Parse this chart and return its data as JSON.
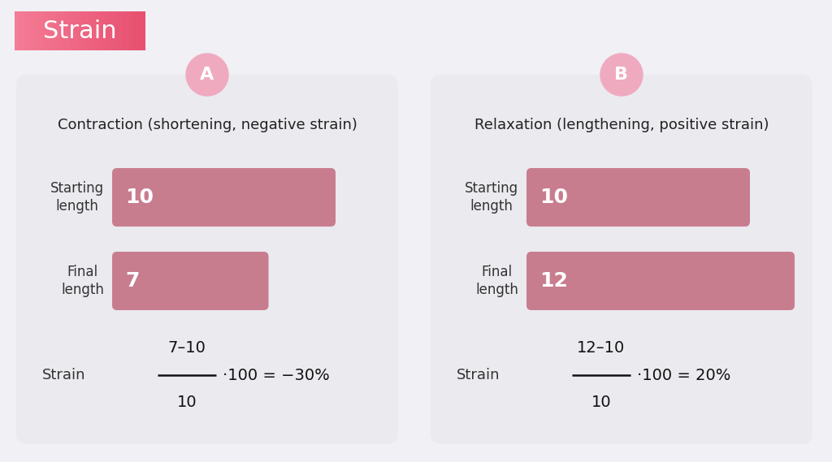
{
  "bg_color": "#f0f0f5",
  "panel_color": "#eaeaef",
  "bar_color": "#c87d8f",
  "title_badge_text": "Strain",
  "badge_circle_color": "#f0aac0",
  "panel_a": {
    "badge": "A",
    "title": "Contraction (shortening, negative strain)",
    "bar1_label": "Starting\nlength",
    "bar1_value": 10,
    "bar1_display": "10",
    "bar2_label": "Final\nlength",
    "bar2_value": 7,
    "bar2_display": "7",
    "strain_label": "Strain",
    "formula_num": "7–10",
    "formula_den": "10",
    "formula_result": "·100 = −30%"
  },
  "panel_b": {
    "badge": "B",
    "title": "Relaxation (lengthening, positive strain)",
    "bar1_label": "Starting\nlength",
    "bar1_value": 10,
    "bar1_display": "10",
    "bar2_label": "Final\nlength",
    "bar2_value": 12,
    "bar2_display": "12",
    "strain_label": "Strain",
    "formula_num": "12–10",
    "formula_den": "10",
    "formula_result": "·100 = 20%"
  },
  "bar_max_value": 12
}
